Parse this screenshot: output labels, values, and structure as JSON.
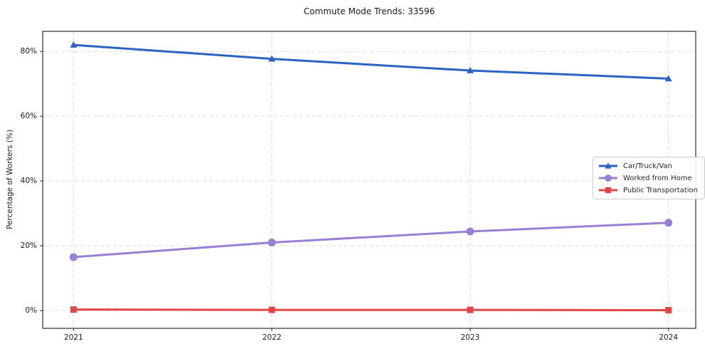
{
  "chart_data": {
    "type": "line",
    "title": "Commute Mode Trends: 33596",
    "xlabel": "",
    "ylabel": "Percentage of Workers (%)",
    "categories": [
      "2021",
      "2022",
      "2023",
      "2024"
    ],
    "y_tick_values": [
      0,
      20,
      40,
      60,
      80
    ],
    "y_tick_labels": [
      "0%",
      "20%",
      "40%",
      "60%",
      "80%"
    ],
    "ylim": [
      -5.5,
      86.2
    ],
    "grid": true,
    "grid_style": "dashed",
    "legend_position": "center right",
    "series": [
      {
        "name": "Car/Truck/Van",
        "color": "#2c63c2",
        "marker": "triangle",
        "values": [
          82.0,
          77.7,
          74.1,
          71.6
        ]
      },
      {
        "name": "Worked from Home",
        "color": "#9a80d5",
        "marker": "circle",
        "values": [
          16.5,
          21.0,
          24.4,
          27.1
        ]
      },
      {
        "name": "Public Transportation",
        "color": "#e04646",
        "marker": "square",
        "values": [
          0.3,
          0.2,
          0.2,
          0.1
        ]
      }
    ],
    "colors": {
      "grid": "#d9d9d9",
      "frame": "#2b2b2b",
      "text": "#1a1a1a"
    }
  }
}
